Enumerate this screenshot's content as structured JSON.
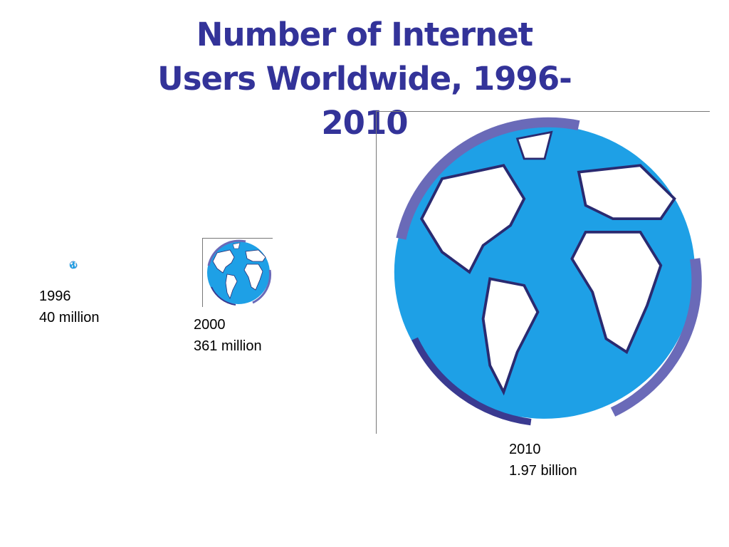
{
  "title": "Number of Internet Users Worldwide, 1996-2010",
  "items": [
    {
      "year": "1996",
      "label": "40 million"
    },
    {
      "year": "2000",
      "label": "361 million"
    },
    {
      "year": "2010",
      "label": "1.97 billion"
    }
  ]
}
